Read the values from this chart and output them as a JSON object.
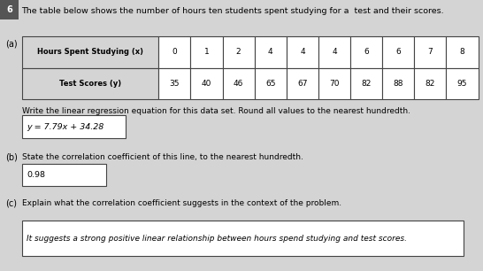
{
  "title": "The table below shows the number of hours ten students spent studying for a  test and their scores.",
  "part_a_label": "(a)",
  "part_b_label": "(b)",
  "part_c_label": "(c)",
  "table_row1_header": "Hours Spent Studying (x)",
  "table_row1_values": [
    "0",
    "1",
    "2",
    "4",
    "4",
    "4",
    "6",
    "6",
    "7",
    "8"
  ],
  "table_row2_header": "Test Scores (y)",
  "table_row2_values": [
    "35",
    "40",
    "46",
    "65",
    "67",
    "70",
    "82",
    "88",
    "82",
    "95"
  ],
  "instruction_a": "Write the linear regression equation for this data set. Round all values to the nearest hundredth.",
  "answer_a": "y = 7.79x + 34.28",
  "instruction_b": "State the correlation coefficient of this line, to the nearest hundredth.",
  "answer_b": "0.98",
  "instruction_c": "Explain what the correlation coefficient suggests in the context of the problem.",
  "answer_c": "It suggests a strong positive linear relationship between hours spend studying and test scores.",
  "bg_color": "#d4d4d4",
  "box_color": "#ffffff",
  "table_header_bg": "#d4d4d4",
  "table_border_color": "#444444",
  "text_color": "#000000",
  "question_num_bg": "#555555",
  "question_num_color": "#ffffff",
  "badge_num": "6"
}
